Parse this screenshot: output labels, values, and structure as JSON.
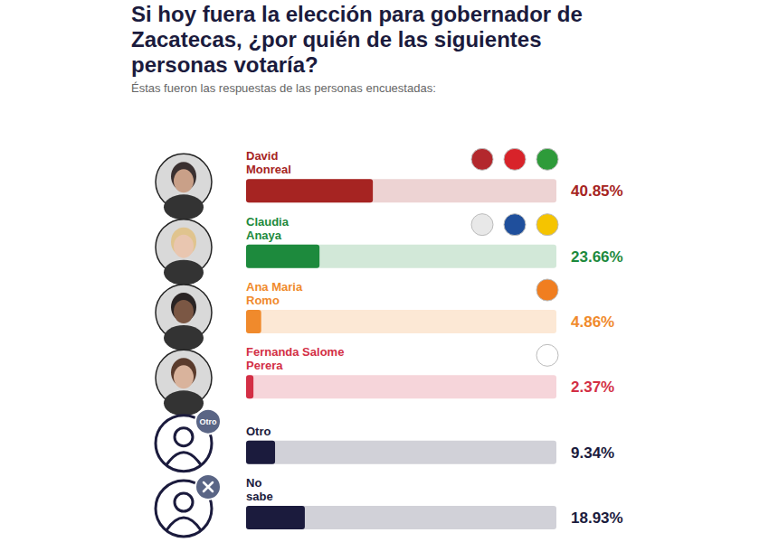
{
  "chart_data": {
    "type": "bar",
    "orientation": "horizontal",
    "title": "Si hoy fuera la elección para gobernador de Zacatecas, ¿por quién de las siguientes personas votaría?",
    "subtitle": "Éstas fueron las respuestas de las personas encuestadas:",
    "categories": [
      "David Monreal",
      "Claudia Anaya",
      "Ana Maria Romo",
      "Fernanda Salome Perera",
      "Otro",
      "No sabe"
    ],
    "values": [
      40.85,
      23.66,
      4.86,
      2.37,
      9.34,
      18.93
    ],
    "value_labels": [
      "40.85%",
      "23.66%",
      "4.86%",
      "2.37%",
      "9.34%",
      "18.93%"
    ],
    "colors": [
      "#a62422",
      "#1d8a3d",
      "#f08a2c",
      "#d32f45",
      "#1b1b3d",
      "#1b1b3d"
    ],
    "xlim": [
      0,
      100
    ],
    "data_labels": true,
    "tick_labels": false,
    "grid": false
  }
}
